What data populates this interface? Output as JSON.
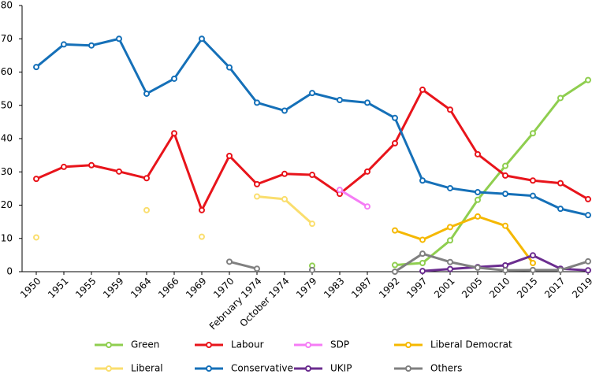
{
  "chart_data": {
    "type": "line",
    "categories": [
      "1950",
      "1951",
      "1955",
      "1959",
      "1964",
      "1966",
      "1969",
      "1970",
      "February 1974",
      "October 1974",
      "1979",
      "1983",
      "1987",
      "1992",
      "1997",
      "2001",
      "2005",
      "2010",
      "2015",
      "2017",
      "2019"
    ],
    "series": [
      {
        "name": "Green",
        "color": "#8fce4f",
        "values": [
          null,
          null,
          null,
          null,
          null,
          null,
          null,
          null,
          null,
          null,
          1.8,
          null,
          null,
          2,
          2.6,
          9.4,
          21.6,
          31.8,
          41.6,
          52.2,
          57.6
        ]
      },
      {
        "name": "Labour",
        "color": "#e8141b",
        "values": [
          27.9,
          31.5,
          32,
          30.1,
          28.1,
          41.6,
          18.5,
          34.8,
          26.3,
          29.4,
          29.1,
          23.4,
          30.1,
          38.6,
          54.7,
          48.7,
          35.3,
          28.9,
          27.4,
          26.6,
          21.8
        ]
      },
      {
        "name": "SDP",
        "color": "#f57cf5",
        "values": [
          null,
          null,
          null,
          null,
          null,
          null,
          null,
          null,
          null,
          null,
          null,
          24.6,
          19.6,
          null,
          null,
          null,
          null,
          null,
          null,
          null,
          null
        ]
      },
      {
        "name": "Liberal Democrat",
        "color": "#f5b800",
        "values": [
          null,
          null,
          null,
          null,
          null,
          null,
          null,
          null,
          null,
          null,
          null,
          null,
          null,
          12.4,
          9.6,
          13.4,
          16.6,
          13.8,
          2.6,
          null,
          null
        ]
      },
      {
        "name": "Liberal",
        "color": "#fade6e",
        "values": [
          10.3,
          null,
          null,
          null,
          18.5,
          null,
          10.5,
          null,
          22.6,
          21.8,
          14.4,
          null,
          null,
          null,
          null,
          null,
          null,
          null,
          null,
          null,
          null
        ]
      },
      {
        "name": "Conservative",
        "color": "#1570b8",
        "values": [
          61.5,
          68.3,
          68,
          70,
          53.5,
          58,
          70,
          61.4,
          50.8,
          48.4,
          53.7,
          51.6,
          50.8,
          46.2,
          27.4,
          25.1,
          23.9,
          23.4,
          22.8,
          18.9,
          17
        ]
      },
      {
        "name": "UKIP",
        "color": "#6b2d8f",
        "values": [
          null,
          null,
          null,
          null,
          null,
          null,
          null,
          null,
          null,
          null,
          null,
          null,
          null,
          null,
          0.2,
          0.8,
          1.4,
          1.9,
          4.9,
          0.9,
          0.4
        ]
      },
      {
        "name": "Others",
        "color": "#808080",
        "values": [
          null,
          null,
          null,
          null,
          null,
          null,
          null,
          3,
          0.9,
          null,
          0.5,
          null,
          null,
          0,
          5.4,
          2.9,
          1.2,
          0.4,
          0.5,
          0.5,
          3.1
        ]
      }
    ],
    "ylim": [
      0,
      80
    ],
    "yticks": [
      0,
      10,
      20,
      30,
      40,
      50,
      60,
      70,
      80
    ]
  }
}
